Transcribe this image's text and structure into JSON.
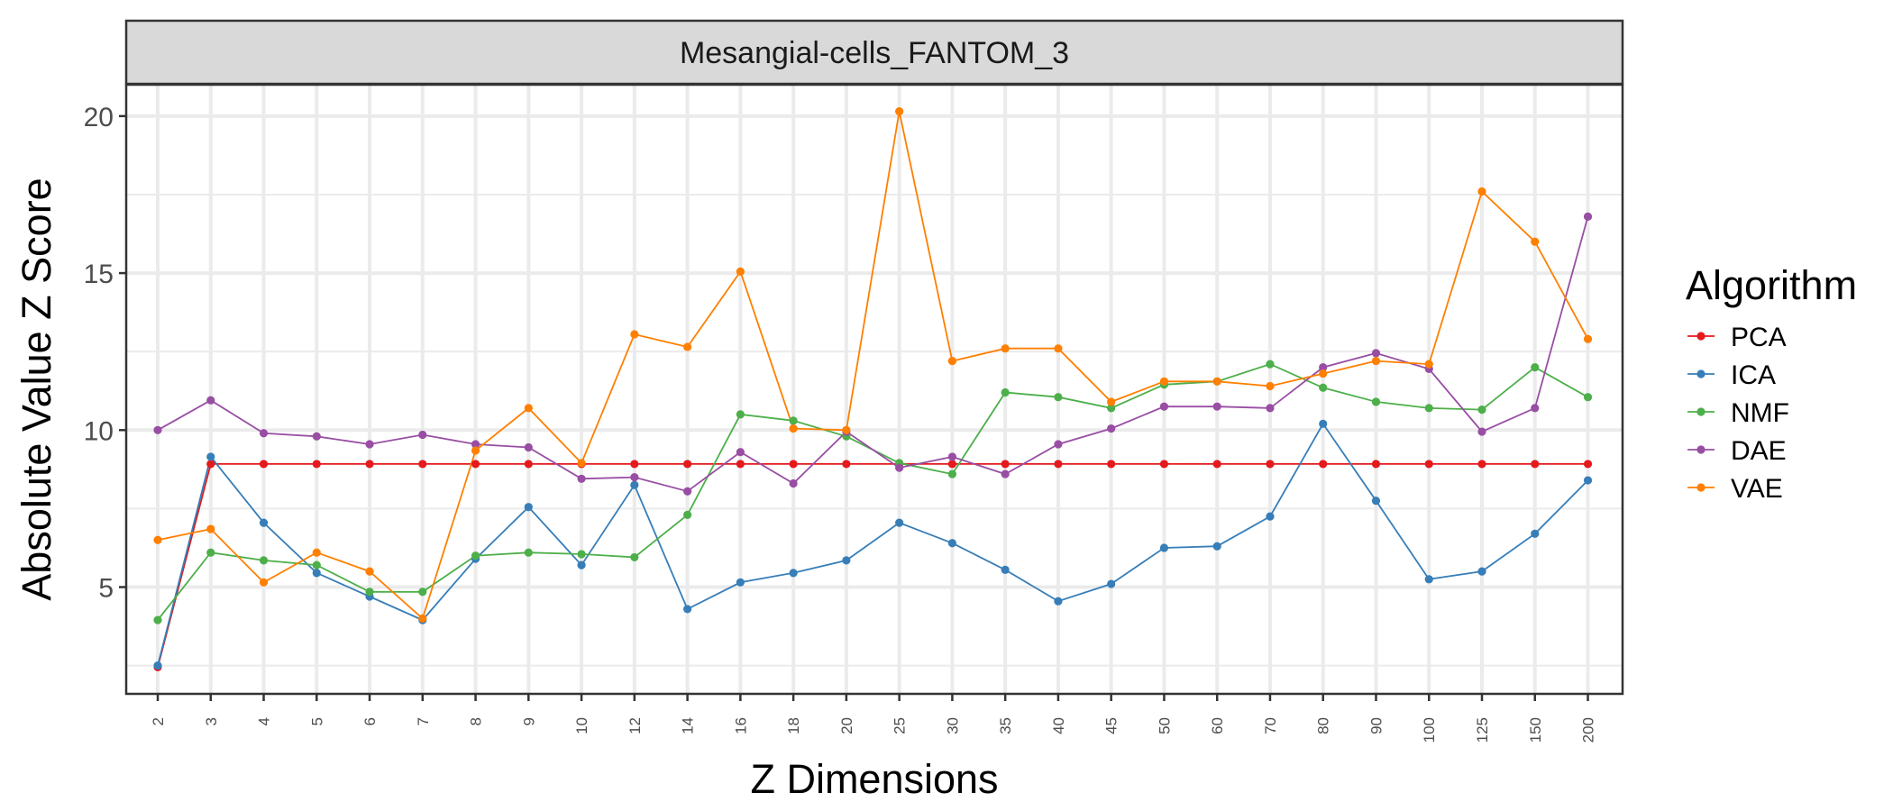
{
  "chart_data": {
    "type": "line",
    "facet_title": "Mesangial-cells_FANTOM_3",
    "xlabel": "Z Dimensions",
    "ylabel": "Absolute Value Z Score",
    "categories": [
      "2",
      "3",
      "4",
      "5",
      "6",
      "7",
      "8",
      "9",
      "10",
      "12",
      "14",
      "16",
      "18",
      "20",
      "25",
      "30",
      "35",
      "40",
      "45",
      "50",
      "60",
      "70",
      "80",
      "90",
      "100",
      "125",
      "150",
      "200"
    ],
    "yticks": [
      5,
      10,
      15,
      20
    ],
    "ylim": [
      1.6,
      21.0
    ],
    "grid": true,
    "legend": {
      "title": "Algorithm",
      "position": "right"
    },
    "series": [
      {
        "name": "PCA",
        "color": "#e41a1c",
        "values": [
          2.45,
          8.92,
          8.92,
          8.92,
          8.92,
          8.92,
          8.92,
          8.92,
          8.92,
          8.92,
          8.92,
          8.92,
          8.92,
          8.92,
          8.92,
          8.92,
          8.92,
          8.92,
          8.92,
          8.92,
          8.92,
          8.92,
          8.92,
          8.92,
          8.92,
          8.92,
          8.92,
          8.92
        ]
      },
      {
        "name": "ICA",
        "color": "#377eb8",
        "values": [
          2.5,
          9.15,
          7.05,
          5.45,
          4.7,
          3.95,
          5.9,
          7.55,
          5.7,
          8.25,
          4.3,
          5.15,
          5.45,
          5.85,
          7.05,
          6.4,
          5.55,
          4.55,
          5.1,
          6.25,
          6.3,
          7.25,
          10.2,
          7.75,
          5.25,
          5.5,
          6.7,
          8.4
        ]
      },
      {
        "name": "NMF",
        "color": "#4daf4a",
        "values": [
          3.95,
          6.1,
          5.85,
          5.7,
          4.85,
          4.85,
          6.0,
          6.1,
          6.05,
          5.95,
          7.3,
          10.5,
          10.3,
          9.8,
          8.95,
          8.6,
          11.2,
          11.05,
          10.7,
          11.45,
          11.55,
          12.1,
          11.35,
          10.9,
          10.7,
          10.65,
          12.0,
          11.05
        ]
      },
      {
        "name": "DAE",
        "color": "#984ea3",
        "values": [
          10.0,
          10.95,
          9.9,
          9.8,
          9.55,
          9.85,
          9.55,
          9.45,
          8.45,
          8.5,
          8.05,
          9.3,
          8.3,
          9.95,
          8.8,
          9.15,
          8.6,
          9.55,
          10.05,
          10.75,
          10.75,
          10.7,
          12.0,
          12.45,
          11.95,
          9.95,
          10.7,
          16.8
        ]
      },
      {
        "name": "VAE",
        "color": "#ff7f00",
        "values": [
          6.5,
          6.85,
          5.15,
          6.1,
          5.5,
          4.0,
          9.35,
          10.7,
          8.95,
          13.05,
          12.65,
          15.05,
          10.05,
          10.0,
          20.15,
          12.2,
          12.6,
          12.6,
          10.9,
          11.55,
          11.55,
          11.4,
          11.8,
          12.2,
          12.1,
          17.6,
          16.0,
          12.9
        ]
      }
    ]
  }
}
